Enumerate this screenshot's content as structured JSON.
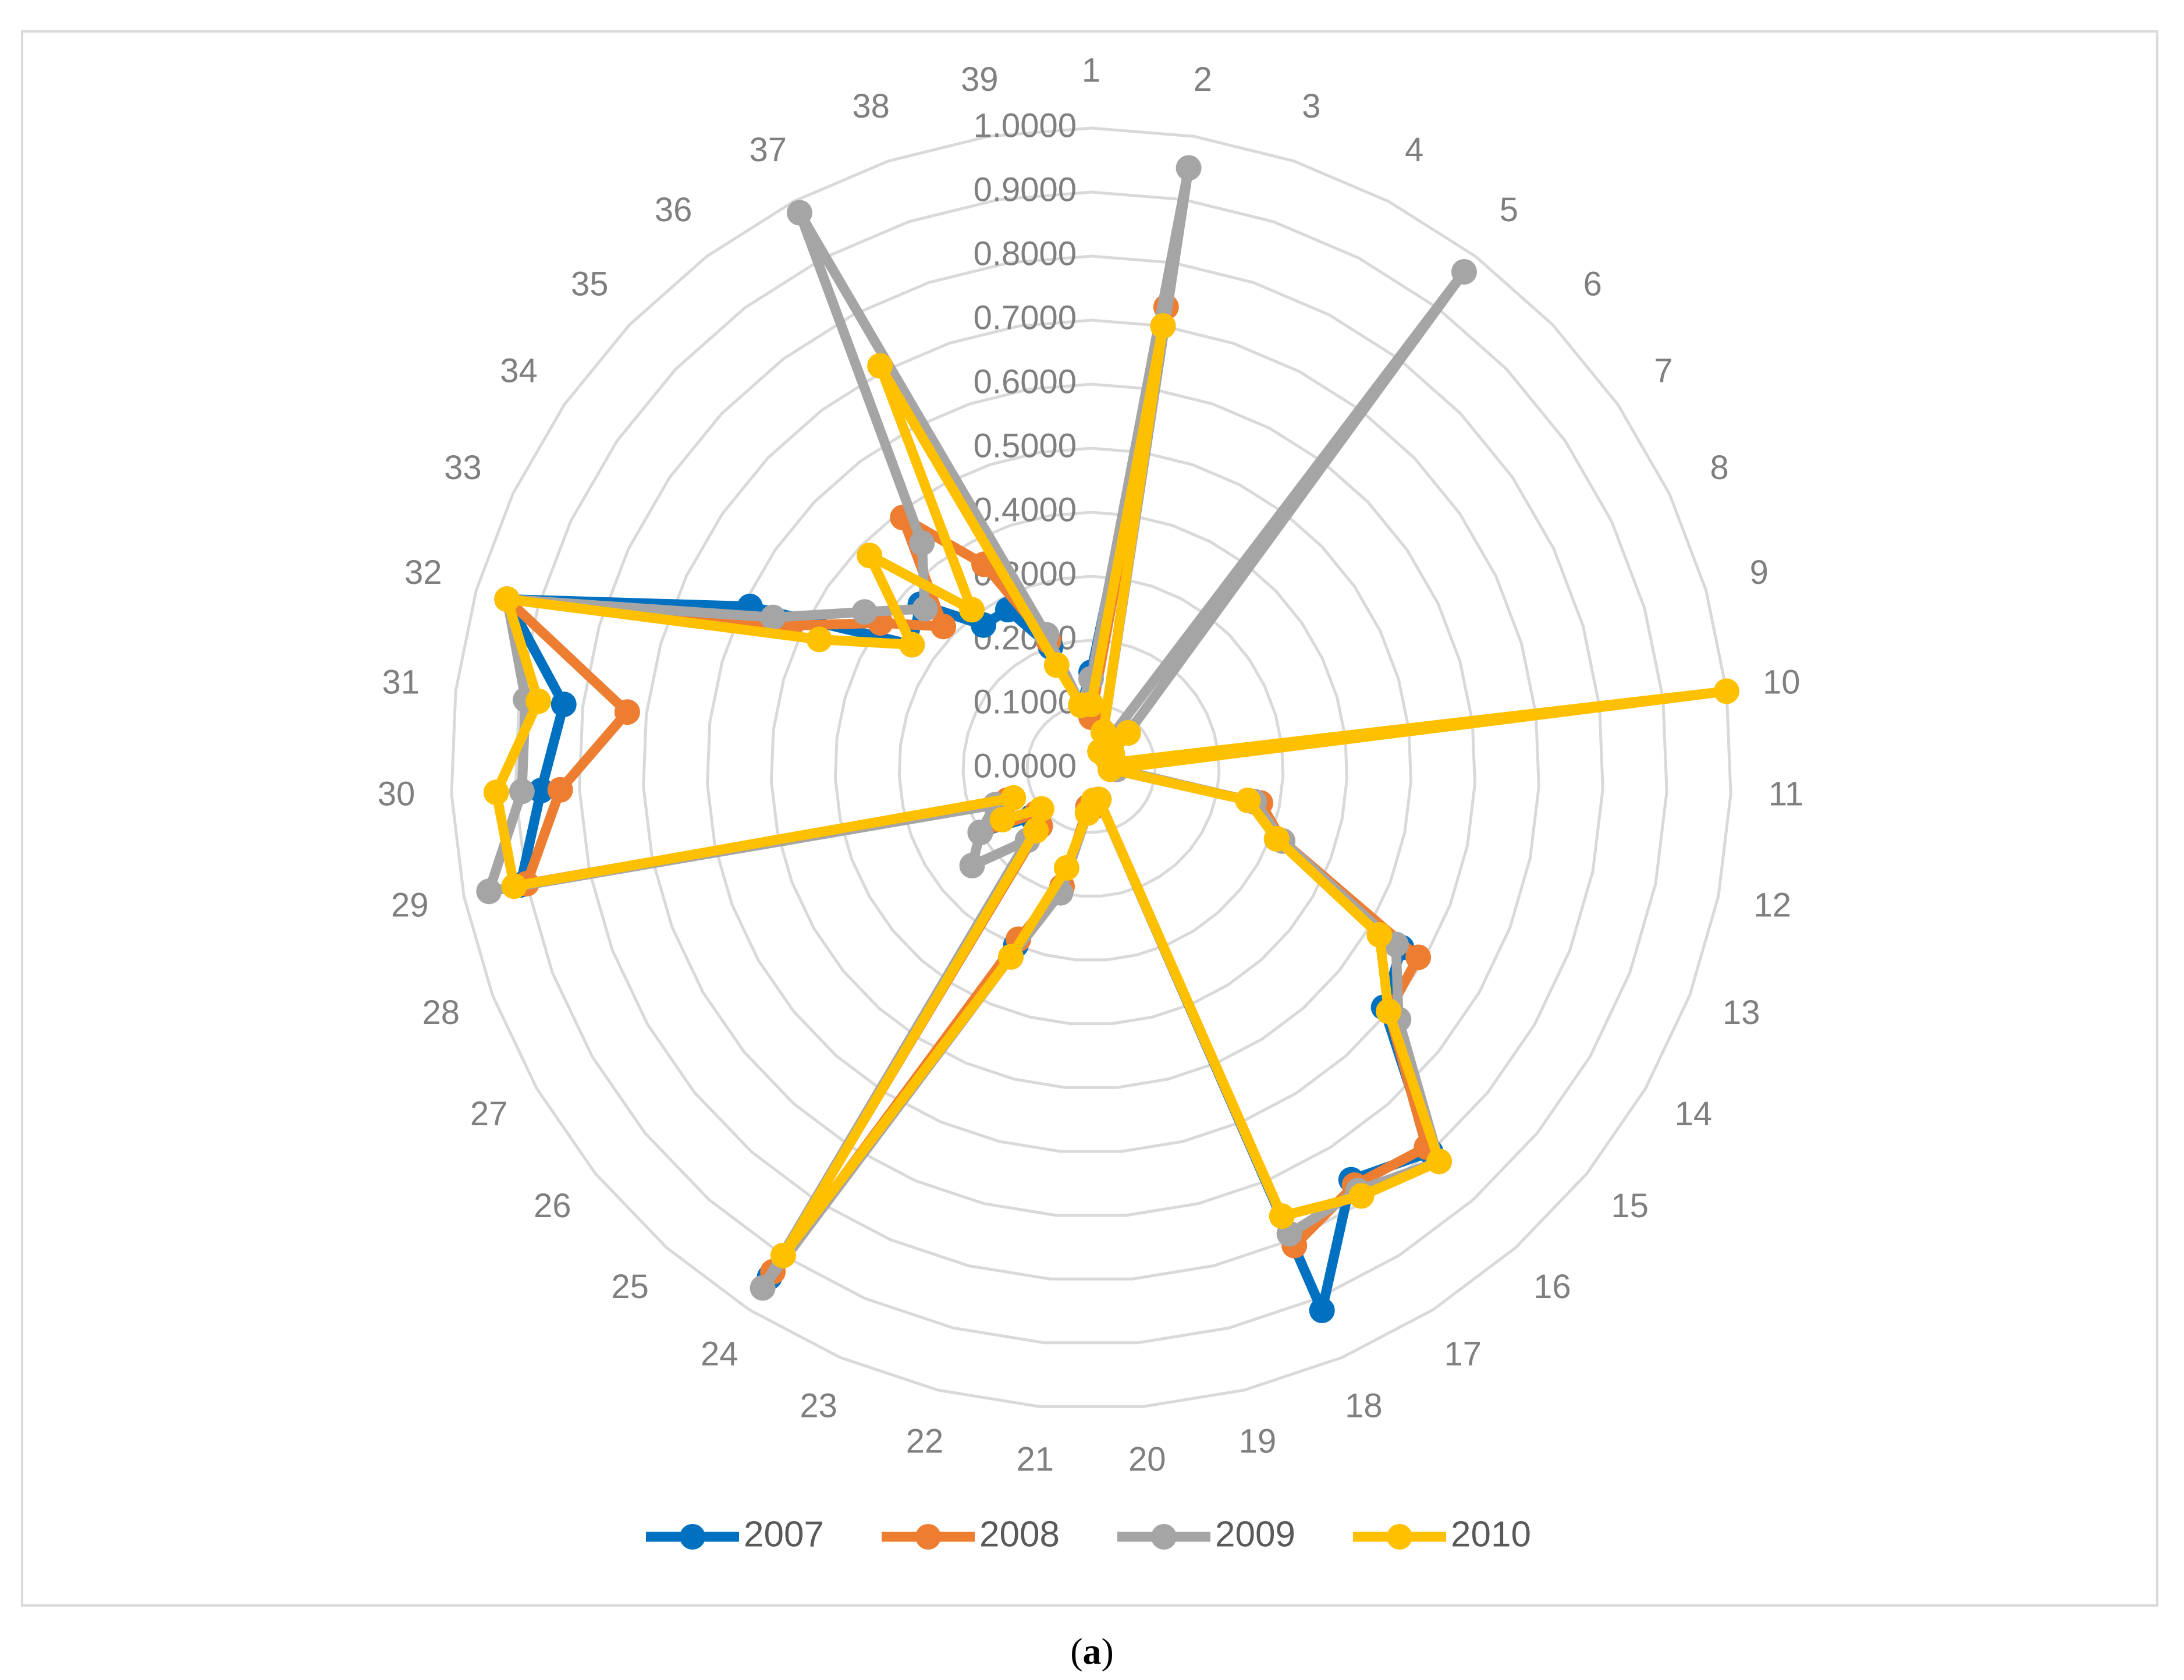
{
  "caption": {
    "open": "(",
    "letter": "a",
    "close": ")"
  },
  "chart_data": {
    "type": "radar",
    "categories": [
      "1",
      "2",
      "3",
      "4",
      "5",
      "6",
      "7",
      "8",
      "9",
      "10",
      "11",
      "12",
      "13",
      "14",
      "15",
      "16",
      "17",
      "18",
      "19",
      "20",
      "21",
      "22",
      "23",
      "24",
      "25",
      "26",
      "27",
      "28",
      "29",
      "30",
      "31",
      "32",
      "33",
      "34",
      "35",
      "36",
      "37",
      "38",
      "39"
    ],
    "r_ticks": [
      "0.0000",
      "0.1000",
      "0.2000",
      "0.3000",
      "0.4000",
      "0.5000",
      "0.6000",
      "0.7000",
      "0.8000",
      "0.9000",
      "1.0000"
    ],
    "rlim": [
      0,
      1
    ],
    "grid": true,
    "legend_position": "bottom",
    "series": [
      {
        "name": "2007",
        "color": "#0070c0",
        "values": [
          0.15,
          0.7,
          0.06,
          0.03,
          0.03,
          0.08,
          0.04,
          0.03,
          0.03,
          0.03,
          0.03,
          0.26,
          0.31,
          0.56,
          0.59,
          0.8,
          0.76,
          0.92,
          0.05,
          0.06,
          0.06,
          0.2,
          0.3,
          0.94,
          0.12,
          0.12,
          0.2,
          0.16,
          0.91,
          0.86,
          0.83,
          0.95,
          0.59,
          0.34,
          0.37,
          0.28,
          0.28,
          0.2,
          0.1
        ]
      },
      {
        "name": "2008",
        "color": "#ed7d31",
        "values": [
          0.08,
          0.73,
          0.06,
          0.03,
          0.03,
          0.08,
          0.04,
          0.03,
          0.03,
          0.03,
          0.03,
          0.27,
          0.32,
          0.59,
          0.6,
          0.79,
          0.77,
          0.81,
          0.05,
          0.06,
          0.06,
          0.19,
          0.29,
          0.93,
          0.12,
          0.11,
          0.2,
          0.14,
          0.9,
          0.83,
          0.73,
          0.95,
          0.52,
          0.4,
          0.32,
          0.49,
          0.36,
          0.21,
          0.1
        ]
      },
      {
        "name": "2009",
        "color": "#a5a5a5",
        "values": [
          0.14,
          0.95,
          0.06,
          0.03,
          0.97,
          0.08,
          0.03,
          0.03,
          0.03,
          0.03,
          0.04,
          0.26,
          0.32,
          0.55,
          0.62,
          0.82,
          0.78,
          0.79,
          0.05,
          0.05,
          0.07,
          0.2,
          0.32,
          0.96,
          0.15,
          0.24,
          0.2,
          0.16,
          0.96,
          0.89,
          0.89,
          0.95,
          0.55,
          0.43,
          0.36,
          0.44,
          0.98,
          0.22,
          0.1
        ]
      },
      {
        "name": "2010",
        "color": "#ffc000",
        "values": [
          0.1,
          0.7,
          0.06,
          0.03,
          0.03,
          0.08,
          0.04,
          0.03,
          0.03,
          1.0,
          0.03,
          0.25,
          0.31,
          0.52,
          0.6,
          0.82,
          0.79,
          0.76,
          0.05,
          0.05,
          0.07,
          0.16,
          0.32,
          0.9,
          0.13,
          0.1,
          0.16,
          0.13,
          0.92,
          0.93,
          0.87,
          0.95,
          0.47,
          0.34,
          0.48,
          0.31,
          0.71,
          0.17,
          0.1
        ]
      }
    ]
  }
}
